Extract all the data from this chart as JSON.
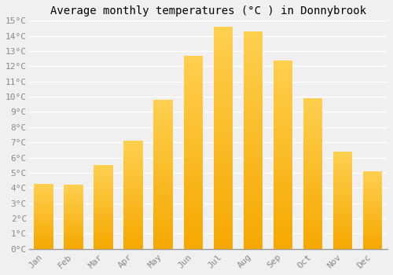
{
  "title": "Average monthly temperatures (°C ) in Donnybrook",
  "months": [
    "Jan",
    "Feb",
    "Mar",
    "Apr",
    "May",
    "Jun",
    "Jul",
    "Aug",
    "Sep",
    "Oct",
    "Nov",
    "Dec"
  ],
  "values": [
    4.3,
    4.2,
    5.5,
    7.1,
    9.8,
    12.7,
    14.6,
    14.3,
    12.4,
    9.9,
    6.4,
    5.1
  ],
  "bar_color_top": "#FFD050",
  "bar_color_bottom": "#F5A800",
  "ylim": [
    0,
    15
  ],
  "yticks": [
    0,
    1,
    2,
    3,
    4,
    5,
    6,
    7,
    8,
    9,
    10,
    11,
    12,
    13,
    14,
    15
  ],
  "background_color": "#f0f0f0",
  "grid_color": "#ffffff",
  "title_fontsize": 10,
  "tick_fontsize": 8,
  "font_family": "monospace"
}
